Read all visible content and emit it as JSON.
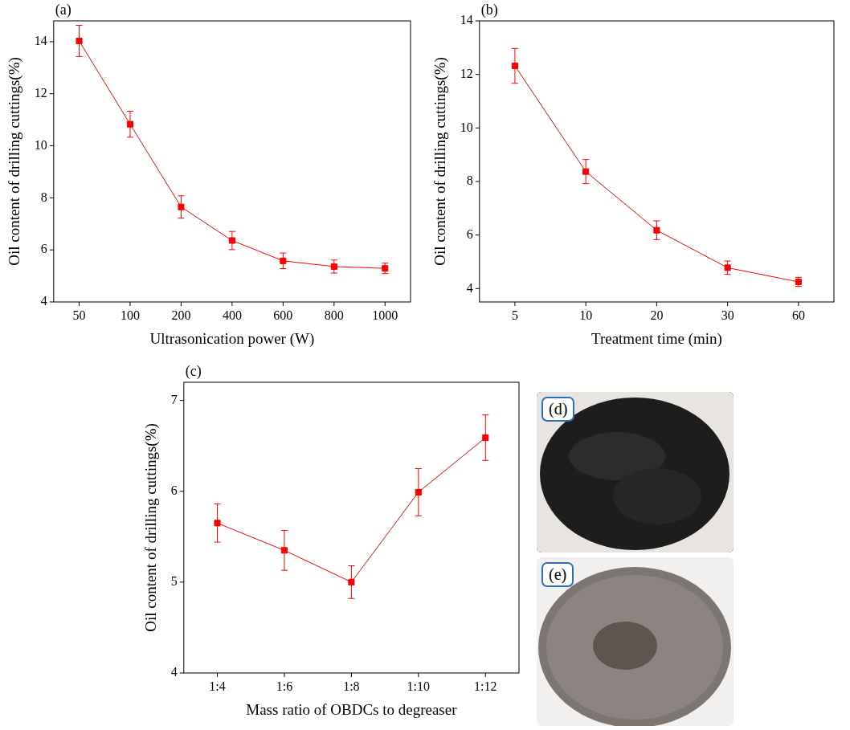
{
  "chart_data": [
    {
      "type": "line",
      "annotation": "(a)",
      "x_label": "Ultrasonication power (W)",
      "y_label": "Oil content of drilling cuttings(%)",
      "categories": [
        50,
        100,
        200,
        400,
        600,
        800,
        1000
      ],
      "values": [
        14.03,
        10.83,
        7.65,
        6.36,
        5.58,
        5.36,
        5.29
      ],
      "errors": [
        0.6,
        0.5,
        0.43,
        0.35,
        0.3,
        0.25,
        0.2
      ],
      "color": "#ff0000",
      "marker": "square",
      "grid": false,
      "ylim": [
        4,
        14.8
      ],
      "yticks": [
        4,
        6,
        8,
        10,
        12,
        14
      ]
    },
    {
      "type": "line",
      "annotation": "(b)",
      "x_label": "Treatment time (min)",
      "y_label": "Oil content of drilling cuttings(%)",
      "categories": [
        5,
        10,
        20,
        30,
        60
      ],
      "values": [
        12.32,
        8.37,
        6.18,
        4.78,
        4.25
      ],
      "errors": [
        0.65,
        0.45,
        0.35,
        0.25,
        0.17
      ],
      "color": "#ff0000",
      "marker": "square",
      "grid": false,
      "ylim": [
        3.5,
        14
      ],
      "yticks": [
        4,
        6,
        8,
        10,
        12,
        14
      ]
    },
    {
      "type": "line",
      "annotation": "(c)",
      "x_label": "Mass ratio of OBDCs to degreaser",
      "y_label": "Oil content of drilling cuttings(%)",
      "categories": [
        "1:4",
        "1:6",
        "1:8",
        "1:10",
        "1:12"
      ],
      "values": [
        5.65,
        5.35,
        5.0,
        5.99,
        6.59
      ],
      "errors": [
        0.21,
        0.22,
        0.18,
        0.26,
        0.25
      ],
      "color": "#ff0000",
      "marker": "square",
      "grid": false,
      "ylim": [
        4,
        7.2
      ],
      "yticks": [
        4,
        5,
        6,
        7
      ]
    }
  ],
  "images": [
    {
      "label": "(d)"
    },
    {
      "label": "(e)"
    }
  ]
}
